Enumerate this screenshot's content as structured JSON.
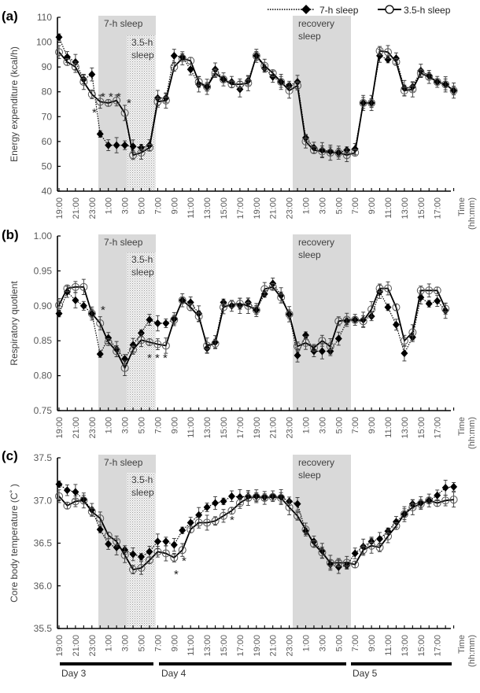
{
  "legend": {
    "series_7h": "7-h sleep",
    "series_35h": "3.5-h sleep"
  },
  "x_axis": {
    "tick_labels": [
      "19:00",
      "21:00",
      "23:00",
      "1:00",
      "3:00",
      "5:00",
      "7:00",
      "9:00",
      "11:00",
      "13:00",
      "15:00",
      "17:00",
      "19:00",
      "21:00",
      "23:00",
      "1:00",
      "3:00",
      "5:00",
      "7:00",
      "9:00",
      "11:00",
      "13:00",
      "15:00",
      "17:00"
    ],
    "title_line1": "Time",
    "title_line2": "(hh:mm)",
    "days": [
      "Day 3",
      "Day 4",
      "Day 5"
    ]
  },
  "shading": {
    "label_7h": "7-h sleep",
    "label_35h_line1": "3.5-h",
    "label_35h_line2": "sleep",
    "label_recovery_line1": "recovery",
    "label_recovery_line2": "sleep"
  },
  "colors": {
    "shade": "#d9d9d9",
    "line": "#000000",
    "marker_open_stroke": "#555555"
  },
  "chart_data": [
    {
      "type": "line",
      "panel": "(a)",
      "ylabel": "Energy expenditure  (kcal/h)",
      "ylim": [
        40,
        110
      ],
      "yticks": [
        "40",
        "50",
        "60",
        "70",
        "80",
        "90",
        "100",
        "110"
      ],
      "x_hours_from_start": [
        0,
        1,
        2,
        3,
        4,
        5,
        6,
        7,
        8,
        9,
        10,
        11,
        12,
        13,
        14,
        15,
        16,
        17,
        18,
        19,
        20,
        21,
        22,
        23,
        24,
        25,
        26,
        27,
        28,
        29,
        30,
        31,
        32,
        33,
        34,
        35,
        36,
        37,
        38,
        39,
        40,
        41,
        42,
        43,
        44,
        45,
        46
      ],
      "series": [
        {
          "name": "7-h sleep",
          "values": [
            102,
            94,
            92,
            85,
            87,
            63,
            58.5,
            58.5,
            58.5,
            58,
            57.5,
            58.5,
            77.5,
            77.5,
            94.5,
            94,
            89,
            83,
            82,
            89,
            85,
            84,
            81,
            84.5,
            94.5,
            89.5,
            86,
            84,
            82.5,
            84,
            null,
            null,
            null,
            null,
            null,
            null,
            null,
            null,
            null,
            null,
            null,
            null,
            null,
            null,
            null,
            null,
            null
          ]
        },
        {
          "name": "3.5-h sleep",
          "values": [
            96,
            92,
            90,
            84,
            79,
            76,
            75.5,
            76.5,
            71.5,
            54.5,
            55.5,
            57.5,
            76,
            76.5,
            90,
            93.5,
            92.5,
            84,
            82,
            87.5,
            85,
            83,
            83,
            83.5,
            94.5,
            90.5,
            87.5,
            84,
            80.5,
            82.5,
            null,
            null,
            null,
            null,
            null,
            null,
            null,
            null,
            null,
            null,
            null,
            null,
            null,
            null,
            null,
            null,
            null
          ]
        }
      ],
      "series_full": [
        {
          "name": "7-h sleep",
          "values": [
            102,
            94,
            92,
            85,
            87,
            63,
            58.5,
            58.5,
            58.5,
            58,
            57.5,
            58.5,
            77.5,
            77.5,
            94.5,
            94,
            89,
            83,
            82,
            89,
            85,
            84,
            81,
            84.5,
            94.5,
            89.5,
            86,
            84,
            82.5,
            84,
            61.5,
            57.5,
            56.5,
            56,
            55.5,
            56.5,
            57,
            75.5,
            75.5,
            94.5,
            93,
            93.5,
            81.5,
            82,
            88.5,
            86.5,
            84,
            83,
            80.5
          ]
        },
        {
          "name": "3.5-h sleep",
          "values": [
            96,
            92,
            90,
            84,
            79,
            76,
            75.5,
            76.5,
            71.5,
            54.5,
            55.5,
            57.5,
            76,
            76.5,
            90,
            93.5,
            92.5,
            84,
            82,
            87.5,
            85,
            83,
            83,
            83.5,
            94.5,
            90.5,
            87.5,
            84,
            80.5,
            82.5,
            60,
            56.5,
            56,
            55.5,
            55.5,
            54.5,
            55.5,
            75.5,
            75.5,
            96.5,
            96,
            92,
            80.5,
            81,
            87.5,
            86,
            84,
            83,
            80.5
          ]
        }
      ],
      "annotations": [
        "*",
        "***",
        "*"
      ]
    },
    {
      "type": "line",
      "panel": "(b)",
      "ylabel": "Respiratory quotient",
      "ylim": [
        0.75,
        1.0
      ],
      "yticks": [
        "0.75",
        "0.80",
        "0.85",
        "0.90",
        "0.95",
        "1.00"
      ],
      "series_full": [
        {
          "name": "7-h sleep",
          "values": [
            0.889,
            0.92,
            0.908,
            0.9,
            0.889,
            0.831,
            0.854,
            0.838,
            0.824,
            0.844,
            0.861,
            0.88,
            0.875,
            0.875,
            0.881,
            0.908,
            0.905,
            0.889,
            0.839,
            0.848,
            0.905,
            0.9,
            0.9,
            0.905,
            0.894,
            0.917,
            0.932,
            0.915,
            0.888,
            0.829,
            0.858,
            0.835,
            0.835,
            0.835,
            0.853,
            0.878,
            0.88,
            0.88,
            0.885,
            0.92,
            0.898,
            0.873,
            0.832,
            0.855,
            0.912,
            0.903,
            0.907,
            0.893
          ]
        },
        {
          "name": "3.5-h sleep",
          "values": [
            0.901,
            0.925,
            0.927,
            0.927,
            0.889,
            0.875,
            0.848,
            0.835,
            0.811,
            0.837,
            0.851,
            0.848,
            0.845,
            0.843,
            0.88,
            0.908,
            0.898,
            0.885,
            0.843,
            0.846,
            0.898,
            0.902,
            0.903,
            0.9,
            0.894,
            0.924,
            0.927,
            0.912,
            0.888,
            0.842,
            0.847,
            0.84,
            0.85,
            0.842,
            0.878,
            0.88,
            0.88,
            0.878,
            0.895,
            0.925,
            0.925,
            0.898,
            0.85,
            0.862,
            0.922,
            0.922,
            0.922,
            0.896
          ]
        }
      ],
      "annotations": [
        "*",
        "***"
      ]
    },
    {
      "type": "line",
      "panel": "(c)",
      "ylabel": "Core body temperature (C˚ )",
      "ylim": [
        35.5,
        37.5
      ],
      "yticks": [
        "35.5",
        "36.0",
        "36.5",
        "37.0",
        "37.5"
      ],
      "series_full": [
        {
          "name": "7-h sleep",
          "values": [
            37.19,
            37.12,
            37.1,
            37.01,
            36.89,
            36.66,
            36.49,
            36.45,
            36.42,
            36.37,
            36.34,
            36.4,
            36.52,
            36.52,
            36.48,
            36.65,
            36.74,
            36.83,
            36.92,
            36.97,
            36.99,
            37.05,
            37.04,
            37.05,
            37.05,
            37.04,
            37.05,
            37.04,
            36.99,
            36.96,
            36.64,
            36.52,
            36.41,
            36.25,
            36.22,
            36.24,
            36.38,
            36.46,
            36.52,
            36.55,
            36.64,
            36.75,
            36.84,
            36.96,
            36.97,
            37.0,
            37.06,
            37.15,
            37.16
          ]
        },
        {
          "name": "3.5-h sleep",
          "values": [
            37.05,
            36.94,
            36.99,
            37.0,
            36.87,
            36.79,
            36.59,
            36.52,
            36.36,
            36.19,
            36.21,
            36.3,
            36.4,
            36.38,
            36.33,
            36.42,
            36.66,
            36.74,
            36.74,
            36.76,
            36.82,
            36.88,
            36.97,
            37.03,
            37.04,
            37.03,
            37.04,
            37.03,
            36.92,
            36.82,
            36.66,
            36.49,
            36.39,
            36.27,
            36.27,
            36.27,
            36.25,
            36.42,
            36.47,
            36.45,
            36.58,
            36.7,
            36.84,
            36.92,
            36.96,
            37.0,
            36.97,
            37.0,
            37.01
          ]
        }
      ],
      "annotations": [
        "*",
        "*",
        "*"
      ]
    }
  ],
  "panels": {
    "a": {
      "letter": "(a)"
    },
    "b": {
      "letter": "(b)"
    },
    "c": {
      "letter": "(c)"
    }
  },
  "stars": {
    "single": "*",
    "triple": "* * *"
  }
}
